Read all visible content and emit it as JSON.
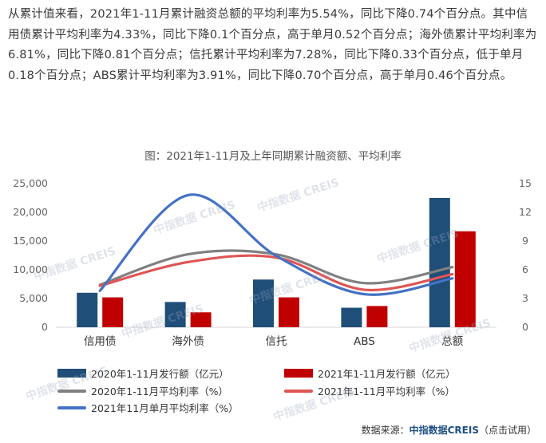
{
  "article": {
    "paragraph": "从累计值来看，2021年1-11月累计融资总额的平均利率为5.54%，同比下降0.74个百分点。其中信用债累计平均利率为4.33%，同比下降0.1个百分点，高于单月0.52个百分点；海外债累计平均利率为6.81%，同比下降0.81个百分点；信托累计平均利率为7.28%，同比下降0.33个百分点，低于单月0.18个百分点；ABS累计平均利率为3.91%，同比下降0.70个百分点，高于单月0.46个百分点。"
  },
  "watermark": "中指数据 CREIS",
  "chart_data": {
    "type": "bar",
    "title": "图：2021年1-11月及上年同期累计融资额、平均利率",
    "categories": [
      "信用债",
      "海外债",
      "信托",
      "ABS",
      "总额"
    ],
    "y_left": {
      "ticks": [
        "0",
        "5,000",
        "10,000",
        "15,000",
        "20,000",
        "25,000"
      ],
      "range": [
        0,
        25000
      ]
    },
    "y_right": {
      "ticks": [
        "0",
        "3",
        "6",
        "9",
        "12",
        "15"
      ],
      "range": [
        0,
        15
      ]
    },
    "series": [
      {
        "name": "2020年1-11月发行额（亿元）",
        "kind": "bar",
        "axis": "left",
        "color": "#1f4e79",
        "values": [
          6000,
          4400,
          8300,
          3400,
          22500
        ]
      },
      {
        "name": "2021年1-11月发行额（亿元）",
        "kind": "bar",
        "axis": "left",
        "color": "#c00000",
        "values": [
          5200,
          2600,
          5200,
          3700,
          16700
        ]
      },
      {
        "name": "2020年1-11月平均利率（%）",
        "kind": "line",
        "axis": "right",
        "color": "#808080",
        "values": [
          4.43,
          7.62,
          7.61,
          4.61,
          6.28
        ]
      },
      {
        "name": "2021年1-11月平均利率（%）",
        "kind": "line",
        "axis": "right",
        "color": "#e05555",
        "values": [
          4.33,
          6.81,
          7.28,
          3.91,
          5.54
        ]
      },
      {
        "name": "2021年11月单月平均利率（%）",
        "kind": "line",
        "axis": "right",
        "color": "#4472c4",
        "values": [
          3.81,
          13.8,
          7.46,
          3.45,
          5.1
        ]
      }
    ]
  },
  "source": {
    "prefix": "数据来源：",
    "name": "中指数据CREIS",
    "suffix": "（点击试用）"
  }
}
